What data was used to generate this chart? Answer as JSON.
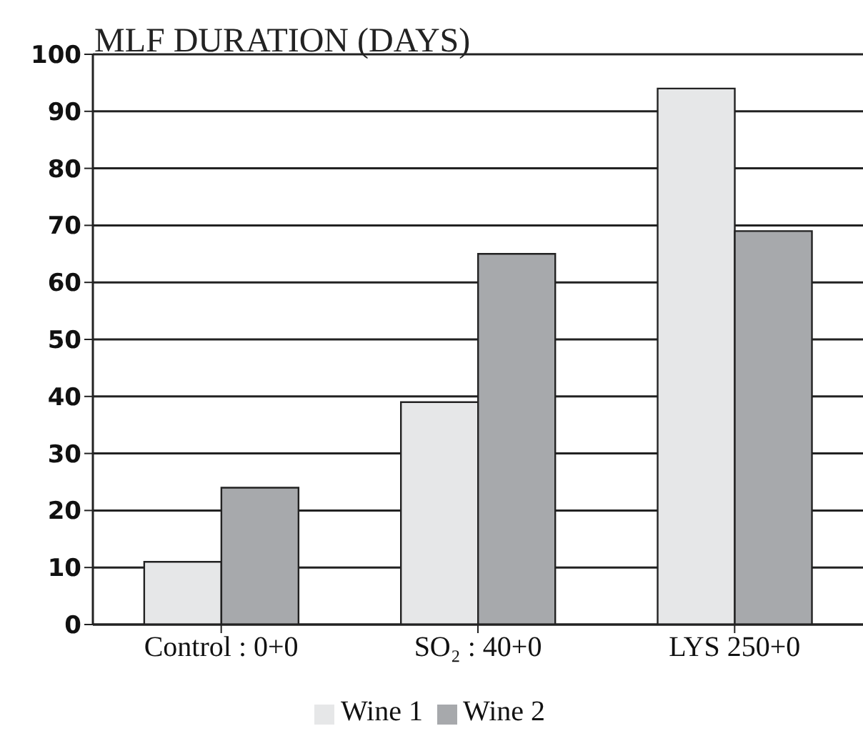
{
  "chart_data": {
    "type": "bar",
    "title": "MLF DURATION (DAYS)",
    "categories": [
      "Control : 0+0",
      "SO₂ : 40+0",
      "LYS 250+0"
    ],
    "series": [
      {
        "name": "Wine 1",
        "color": "#e6e7e8",
        "values": [
          11,
          39,
          94
        ]
      },
      {
        "name": "Wine 2",
        "color": "#a7a9ac",
        "values": [
          24,
          65,
          69
        ]
      }
    ],
    "ylim": [
      0,
      100
    ],
    "yticks": [
      0,
      10,
      20,
      30,
      40,
      50,
      60,
      70,
      80,
      90,
      100
    ],
    "grid": "y",
    "legend": "bottom"
  }
}
